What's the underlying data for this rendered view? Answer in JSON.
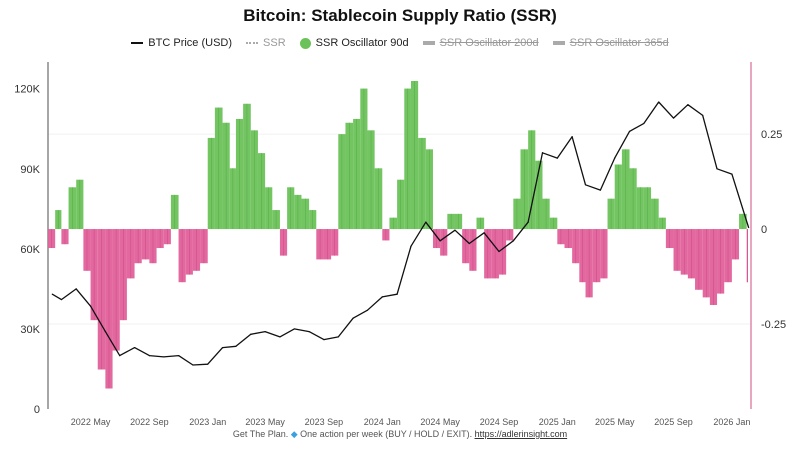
{
  "title": "Bitcoin: Stablecoin Supply Ratio (SSR)",
  "legend": [
    {
      "label": "BTC Price (USD)",
      "swatch": "line",
      "visible": true
    },
    {
      "label": "SSR",
      "swatch": "dotted",
      "visible": true
    },
    {
      "label": "SSR Oscillator 90d",
      "swatch": "circle",
      "visible": true
    },
    {
      "label": "SSR Oscillator 200d",
      "swatch": "double",
      "visible": false
    },
    {
      "label": "SSR Oscillator 365d",
      "swatch": "double",
      "visible": false
    }
  ],
  "footer": {
    "text": "Get The Plan. ",
    "icon": "gem-icon",
    "text2": " One action per week (BUY / HOLD / EXIT). ",
    "link": "https://adlerinsight.com"
  },
  "colors": {
    "positive": "#6cc25a",
    "negative": "#e0609a",
    "price": "#111111",
    "right_axis": "#e08aa8"
  },
  "chart_data": {
    "type": "line+bar",
    "title": "Bitcoin: Stablecoin Supply Ratio (SSR)",
    "xlim": [
      "2022-02-01",
      "2026-02-10"
    ],
    "x_ticks": [
      "2022-05-01",
      "2022-09-01",
      "2023-01-01",
      "2023-05-01",
      "2023-09-01",
      "2024-01-01",
      "2024-05-01",
      "2024-09-01",
      "2025-01-01",
      "2025-05-01",
      "2025-09-01",
      "2026-01-01"
    ],
    "x_tick_labels": [
      "2022 May",
      "2022 Sep",
      "2023 Jan",
      "2023 May",
      "2023 Sep",
      "2024 Jan",
      "2024 May",
      "2024 Sep",
      "2025 Jan",
      "2025 May",
      "2025 Sep",
      "2026 Jan"
    ],
    "left_axis": {
      "ylim": [
        0,
        130000
      ],
      "ticks": [
        0,
        30000,
        60000,
        90000,
        120000
      ],
      "tick_labels": [
        "0",
        "30K",
        "60K",
        "90K",
        "120K"
      ]
    },
    "right_axis": {
      "ylim": [
        -0.474,
        0.44
      ],
      "ticks": [
        -0.25,
        0,
        0.25
      ],
      "tick_labels": [
        "-0.25",
        "0",
        "0.25"
      ]
    },
    "grid": "horizontal-faint",
    "legend_position": "top",
    "series": [
      {
        "name": "BTC Price (USD)",
        "axis": "left",
        "type": "line",
        "x": [
          "2022-02-10",
          "2022-03-01",
          "2022-04-01",
          "2022-05-01",
          "2022-06-01",
          "2022-07-01",
          "2022-08-01",
          "2022-09-01",
          "2022-10-01",
          "2022-11-01",
          "2022-12-01",
          "2023-01-01",
          "2023-02-01",
          "2023-03-01",
          "2023-04-01",
          "2023-05-01",
          "2023-06-01",
          "2023-07-01",
          "2023-08-01",
          "2023-09-01",
          "2023-10-01",
          "2023-11-01",
          "2023-12-01",
          "2024-01-01",
          "2024-02-01",
          "2024-03-01",
          "2024-04-01",
          "2024-05-01",
          "2024-06-01",
          "2024-07-01",
          "2024-08-01",
          "2024-09-01",
          "2024-10-01",
          "2024-11-01",
          "2024-12-01",
          "2025-01-01",
          "2025-02-01",
          "2025-03-01",
          "2025-04-01",
          "2025-05-01",
          "2025-06-01",
          "2025-07-01",
          "2025-08-01",
          "2025-09-01",
          "2025-10-01",
          "2025-11-01",
          "2025-12-01",
          "2026-01-01",
          "2026-02-05"
        ],
        "values": [
          43000,
          41000,
          45000,
          38500,
          29000,
          20000,
          23000,
          20000,
          19500,
          20000,
          16500,
          16800,
          23000,
          23500,
          28000,
          29000,
          27000,
          30000,
          29000,
          26000,
          27000,
          34000,
          37000,
          42000,
          43000,
          61000,
          70000,
          63000,
          67000,
          62000,
          66000,
          59000,
          63000,
          70000,
          96000,
          94000,
          102000,
          84000,
          82000,
          94000,
          104000,
          107000,
          115000,
          109000,
          114000,
          110000,
          90000,
          88000,
          68000
        ]
      },
      {
        "name": "SSR Oscillator 90d",
        "axis": "right",
        "type": "bar",
        "x": [
          "2022-02-01",
          "2022-02-16",
          "2022-03-01",
          "2022-03-16",
          "2022-04-01",
          "2022-04-16",
          "2022-05-01",
          "2022-05-16",
          "2022-06-01",
          "2022-06-16",
          "2022-07-01",
          "2022-07-16",
          "2022-08-01",
          "2022-08-16",
          "2022-09-01",
          "2022-09-16",
          "2022-10-01",
          "2022-10-16",
          "2022-11-01",
          "2022-11-16",
          "2022-12-01",
          "2022-12-16",
          "2023-01-01",
          "2023-01-16",
          "2023-02-01",
          "2023-02-16",
          "2023-03-01",
          "2023-03-16",
          "2023-04-01",
          "2023-04-16",
          "2023-05-01",
          "2023-05-16",
          "2023-06-01",
          "2023-06-16",
          "2023-07-01",
          "2023-07-16",
          "2023-08-01",
          "2023-08-16",
          "2023-09-01",
          "2023-09-16",
          "2023-10-01",
          "2023-10-16",
          "2023-11-01",
          "2023-11-16",
          "2023-12-01",
          "2023-12-16",
          "2024-01-01",
          "2024-01-16",
          "2024-02-01",
          "2024-02-16",
          "2024-03-01",
          "2024-03-16",
          "2024-04-01",
          "2024-04-16",
          "2024-05-01",
          "2024-05-16",
          "2024-06-01",
          "2024-06-16",
          "2024-07-01",
          "2024-07-16",
          "2024-08-01",
          "2024-08-16",
          "2024-09-01",
          "2024-09-16",
          "2024-10-01",
          "2024-10-16",
          "2024-11-01",
          "2024-11-16",
          "2024-12-01",
          "2024-12-16",
          "2025-01-01",
          "2025-01-16",
          "2025-02-01",
          "2025-02-16",
          "2025-03-01",
          "2025-03-16",
          "2025-04-01",
          "2025-04-16",
          "2025-05-01",
          "2025-05-16",
          "2025-06-01",
          "2025-06-16",
          "2025-07-01",
          "2025-07-16",
          "2025-08-01",
          "2025-08-16",
          "2025-09-01",
          "2025-09-16",
          "2025-10-01",
          "2025-10-16",
          "2025-11-01",
          "2025-11-16",
          "2025-12-01",
          "2025-12-16",
          "2026-01-01",
          "2026-01-16",
          "2026-02-01"
        ],
        "values": [
          -0.05,
          0.05,
          -0.04,
          0.11,
          0.13,
          -0.11,
          -0.24,
          -0.37,
          -0.42,
          -0.32,
          -0.24,
          -0.13,
          -0.09,
          -0.08,
          -0.09,
          -0.05,
          -0.04,
          0.09,
          -0.14,
          -0.12,
          -0.11,
          -0.09,
          0.24,
          0.32,
          0.28,
          0.16,
          0.29,
          0.33,
          0.26,
          0.2,
          0.11,
          0.05,
          -0.07,
          0.11,
          0.09,
          0.08,
          0.05,
          -0.08,
          -0.08,
          -0.07,
          0.25,
          0.28,
          0.29,
          0.37,
          0.26,
          0.16,
          -0.03,
          0.03,
          0.13,
          0.37,
          0.39,
          0.24,
          0.21,
          -0.05,
          -0.07,
          0.04,
          0.04,
          -0.09,
          -0.11,
          0.03,
          -0.13,
          -0.13,
          -0.12,
          -0.03,
          0.08,
          0.21,
          0.26,
          0.18,
          0.08,
          0.03,
          -0.04,
          -0.05,
          -0.09,
          -0.14,
          -0.18,
          -0.14,
          -0.13,
          0.08,
          0.17,
          0.21,
          0.16,
          0.11,
          0.11,
          0.08,
          0.03,
          -0.05,
          -0.11,
          -0.12,
          -0.13,
          -0.16,
          -0.18,
          -0.2,
          -0.17,
          -0.14,
          -0.08,
          0.04,
          -0.14
        ]
      }
    ]
  }
}
